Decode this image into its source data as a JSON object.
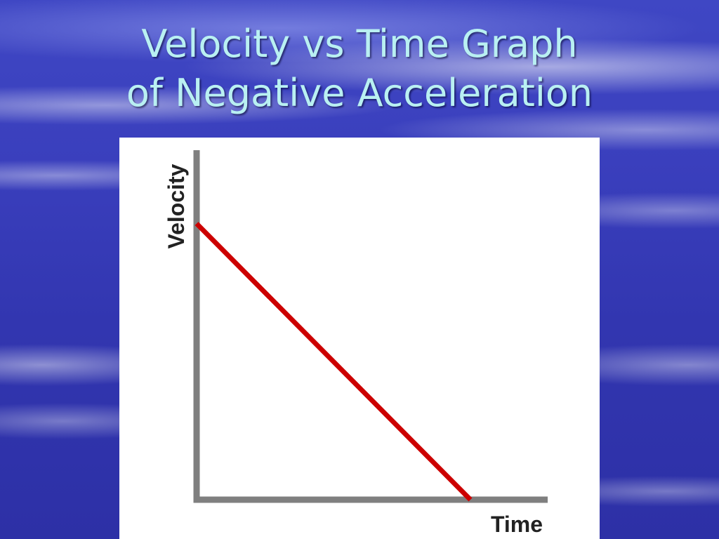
{
  "slide": {
    "title_line1": "Velocity vs Time Graph",
    "title_line2": "of Negative Acceleration"
  },
  "chart_data": {
    "type": "line",
    "xlabel": "Time",
    "ylabel": "Velocity",
    "xlim": [
      0,
      1
    ],
    "ylim": [
      0,
      1
    ],
    "grid": false,
    "series": [
      {
        "x": [
          0,
          0.78
        ],
        "y": [
          0.79,
          0
        ],
        "color": "#cc0000"
      }
    ],
    "axis_color": "#7f7f7f"
  }
}
